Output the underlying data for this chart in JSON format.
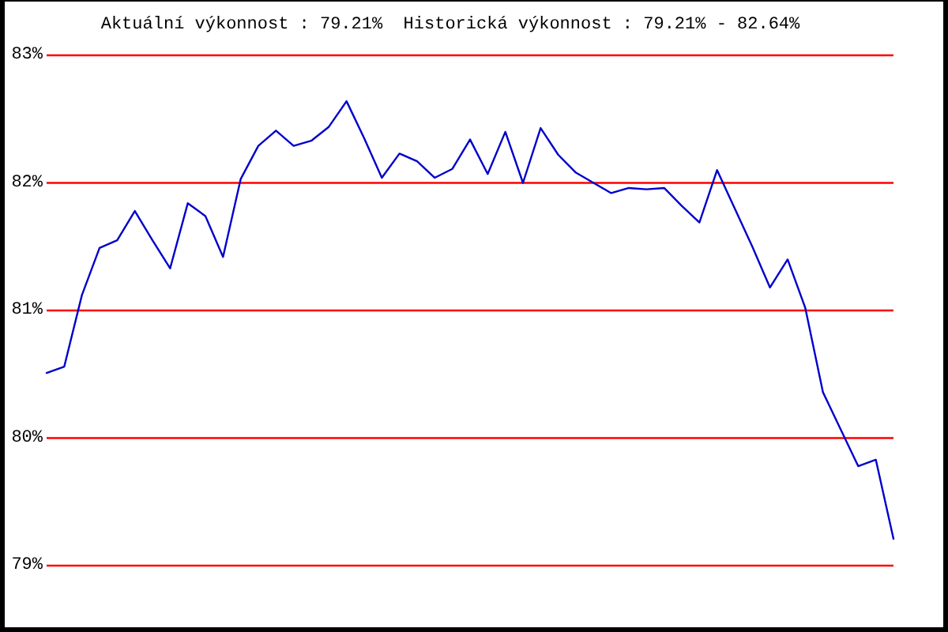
{
  "chart_data": {
    "type": "line",
    "title": "Aktuální výkonnost : 79.21%  Historická výkonnost : 79.21% - 82.64%",
    "categories": [
      null,
      null,
      null,
      null,
      null,
      null,
      null,
      null,
      null,
      null,
      null,
      null,
      null,
      null,
      null,
      null,
      null,
      null,
      null,
      null,
      null,
      null,
      null,
      null,
      null,
      null,
      null,
      null,
      null,
      null,
      null,
      null,
      null,
      null,
      null,
      null,
      null,
      null,
      null,
      null,
      null,
      null,
      null,
      null,
      null,
      null,
      null,
      null,
      null
    ],
    "series": [
      {
        "color": "#0000cc",
        "values": [
          80.51,
          80.56,
          81.12,
          81.49,
          81.55,
          81.78,
          81.55,
          81.33,
          81.84,
          81.74,
          81.42,
          82.03,
          82.29,
          82.41,
          82.29,
          82.33,
          82.44,
          82.64,
          82.35,
          82.04,
          82.23,
          82.17,
          82.04,
          82.11,
          82.34,
          82.07,
          82.4,
          82.0,
          82.43,
          82.22,
          82.08,
          82.0,
          81.92,
          81.96,
          81.95,
          81.96,
          81.82,
          81.69,
          82.1,
          81.8,
          81.5,
          81.18,
          81.4,
          81.02,
          80.36,
          80.07,
          79.78,
          79.83,
          79.21
        ]
      }
    ],
    "ylim": [
      79,
      83
    ],
    "yticks": [
      {
        "value": 79,
        "label": "79%"
      },
      {
        "value": 80,
        "label": "80%"
      },
      {
        "value": 81,
        "label": "81%"
      },
      {
        "value": 82,
        "label": "82%"
      },
      {
        "value": 83,
        "label": "83%"
      }
    ],
    "grid": "y",
    "tick_labels": "y"
  }
}
